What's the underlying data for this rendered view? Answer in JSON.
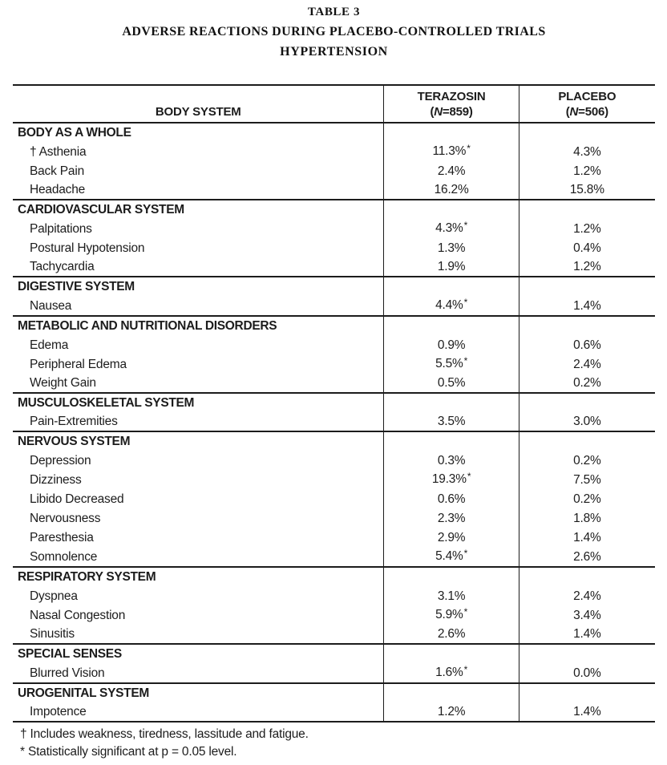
{
  "title": {
    "line1": "TABLE 3",
    "line2": "ADVERSE REACTIONS DURING PLACEBO-CONTROLLED TRIALS",
    "line3": "HYPERTENSION"
  },
  "table": {
    "columns": [
      {
        "label": "BODY SYSTEM"
      },
      {
        "drug": "TERAZOSIN",
        "n_pre": "(",
        "n_italic": "N",
        "n_post": "=859)"
      },
      {
        "drug": "PLACEBO",
        "n_pre": "(",
        "n_italic": "N",
        "n_post": "=506)"
      }
    ],
    "sections": [
      {
        "header": "BODY AS A WHOLE",
        "rows": [
          {
            "label": "† Asthenia",
            "terazosin": "11.3%*",
            "placebo": "4.3%"
          },
          {
            "label": "Back Pain",
            "terazosin": "2.4%",
            "placebo": "1.2%"
          },
          {
            "label": "Headache",
            "terazosin": "16.2%",
            "placebo": "15.8%"
          }
        ]
      },
      {
        "header": "CARDIOVASCULAR SYSTEM",
        "rows": [
          {
            "label": "Palpitations",
            "terazosin": "4.3%*",
            "placebo": "1.2%"
          },
          {
            "label": "Postural Hypotension",
            "terazosin": "1.3%",
            "placebo": "0.4%"
          },
          {
            "label": "Tachycardia",
            "terazosin": "1.9%",
            "placebo": "1.2%"
          }
        ]
      },
      {
        "header": "DIGESTIVE SYSTEM",
        "rows": [
          {
            "label": "Nausea",
            "terazosin": "4.4%*",
            "placebo": "1.4%"
          }
        ]
      },
      {
        "header": "METABOLIC AND NUTRITIONAL DISORDERS",
        "rows": [
          {
            "label": "Edema",
            "terazosin": "0.9%",
            "placebo": "0.6%"
          },
          {
            "label": "Peripheral Edema",
            "terazosin": "5.5%*",
            "placebo": "2.4%"
          },
          {
            "label": "Weight Gain",
            "terazosin": "0.5%",
            "placebo": "0.2%"
          }
        ]
      },
      {
        "header": "MUSCULOSKELETAL SYSTEM",
        "rows": [
          {
            "label": "Pain-Extremities",
            "terazosin": "3.5%",
            "placebo": "3.0%"
          }
        ]
      },
      {
        "header": "NERVOUS SYSTEM",
        "rows": [
          {
            "label": "Depression",
            "terazosin": "0.3%",
            "placebo": "0.2%"
          },
          {
            "label": "Dizziness",
            "terazosin": "19.3%*",
            "placebo": "7.5%"
          },
          {
            "label": "Libido Decreased",
            "terazosin": "0.6%",
            "placebo": "0.2%"
          },
          {
            "label": "Nervousness",
            "terazosin": "2.3%",
            "placebo": "1.8%"
          },
          {
            "label": "Paresthesia",
            "terazosin": "2.9%",
            "placebo": "1.4%"
          },
          {
            "label": "Somnolence",
            "terazosin": "5.4%*",
            "placebo": "2.6%"
          }
        ]
      },
      {
        "header": "RESPIRATORY SYSTEM",
        "rows": [
          {
            "label": "Dyspnea",
            "terazosin": "3.1%",
            "placebo": "2.4%"
          },
          {
            "label": "Nasal Congestion",
            "terazosin": "5.9%*",
            "placebo": "3.4%"
          },
          {
            "label": "Sinusitis",
            "terazosin": "2.6%",
            "placebo": "1.4%"
          }
        ]
      },
      {
        "header": "SPECIAL SENSES",
        "rows": [
          {
            "label": "Blurred Vision",
            "terazosin": "1.6%*",
            "placebo": "0.0%"
          }
        ]
      },
      {
        "header": "UROGENITAL SYSTEM",
        "rows": [
          {
            "label": "Impotence",
            "terazosin": "1.2%",
            "placebo": "1.4%"
          }
        ]
      }
    ]
  },
  "footnotes": [
    "† Includes weakness, tiredness, lassitude and fatigue.",
    "* Statistically significant at p = 0.05 level."
  ]
}
